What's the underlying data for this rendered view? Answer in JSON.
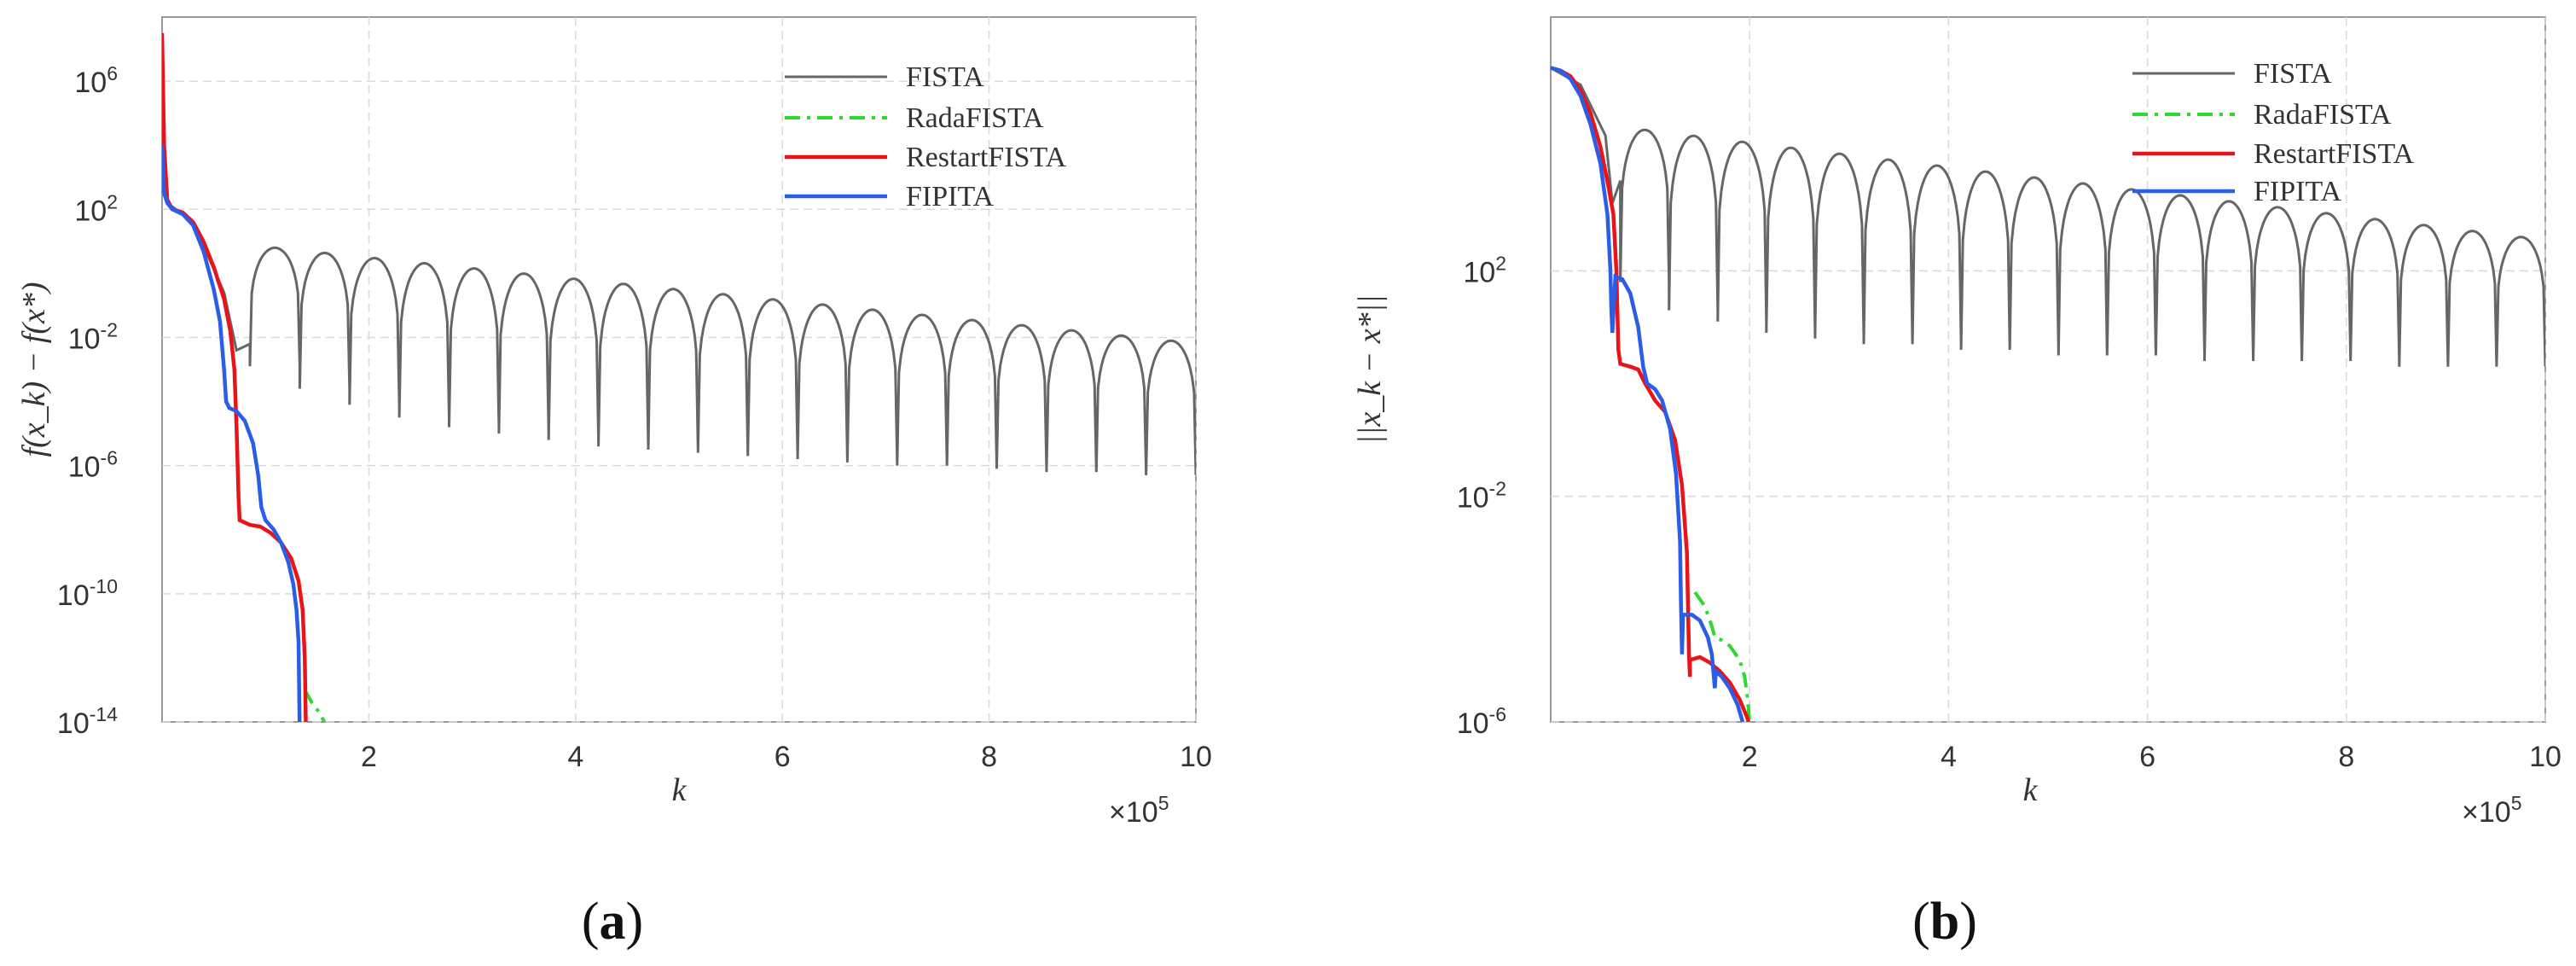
{
  "chart_data": [
    {
      "type": "line",
      "panel": "a",
      "panel_label": "a",
      "xlabel": "k",
      "ylabel": "f(x_k) − f(x*)",
      "yscale": "log",
      "x_multiplier": "×10",
      "x_multiplier_exp": "5",
      "xlim": [
        0,
        10
      ],
      "ylim_exp": [
        -14,
        8
      ],
      "x_ticks": [
        "2",
        "4",
        "6",
        "8",
        "10"
      ],
      "y_ticks": [
        {
          "base": "10",
          "exp": "6"
        },
        {
          "base": "10",
          "exp": "2"
        },
        {
          "base": "10",
          "exp": "-2"
        },
        {
          "base": "10",
          "exp": "-6"
        },
        {
          "base": "10",
          "exp": "-10"
        },
        {
          "base": "10",
          "exp": "-14"
        }
      ],
      "legend_position": "top-right",
      "series": [
        {
          "name": "FISTA",
          "color": "#666666",
          "style": "solid",
          "envelope": {
            "start_x": 0.85,
            "peak_first_log10": 0.8,
            "peak_last_log10": -2.1,
            "dips_log10": [
              -2.9,
              -3.6,
              -4.1,
              -4.5,
              -4.8,
              -5.0,
              -5.2,
              -5.4,
              -5.5,
              -5.6,
              -5.7,
              -5.8,
              -5.9,
              -6.0,
              -6.0,
              -6.1,
              -6.2,
              -6.2,
              -6.3
            ],
            "n_oscillations": 19
          }
        },
        {
          "name": "RadaFISTA",
          "color": "#2fd92f",
          "style": "dash-dot",
          "points": [
            [
              1.38,
              -13.0
            ],
            [
              1.45,
              -13.4
            ],
            [
              1.52,
              -13.7
            ],
            [
              1.57,
              -14.0
            ]
          ]
        },
        {
          "name": "RestartFISTA",
          "color": "#e8141a",
          "style": "solid",
          "points": [
            [
              0,
              7.5
            ],
            [
              0.02,
              4.0
            ],
            [
              0.05,
              2.3
            ],
            [
              0.1,
              2.0
            ],
            [
              0.2,
              1.9
            ],
            [
              0.3,
              1.6
            ],
            [
              0.4,
              1.0
            ],
            [
              0.5,
              0.2
            ],
            [
              0.6,
              -0.8
            ],
            [
              0.66,
              -1.8
            ],
            [
              0.7,
              -3.0
            ],
            [
              0.72,
              -4.8
            ],
            [
              0.74,
              -7.0
            ],
            [
              0.75,
              -7.7
            ],
            [
              0.85,
              -7.85
            ],
            [
              0.95,
              -7.9
            ],
            [
              1.05,
              -8.1
            ],
            [
              1.15,
              -8.4
            ],
            [
              1.25,
              -8.9
            ],
            [
              1.32,
              -9.6
            ],
            [
              1.36,
              -10.5
            ],
            [
              1.38,
              -12.0
            ],
            [
              1.39,
              -14.0
            ]
          ]
        },
        {
          "name": "FIPITA",
          "color": "#2a5de8",
          "style": "solid",
          "points": [
            [
              0,
              4.0
            ],
            [
              0.02,
              2.5
            ],
            [
              0.05,
              2.2
            ],
            [
              0.1,
              2.0
            ],
            [
              0.2,
              1.85
            ],
            [
              0.3,
              1.5
            ],
            [
              0.4,
              0.7
            ],
            [
              0.5,
              -0.5
            ],
            [
              0.56,
              -1.5
            ],
            [
              0.6,
              -3.0
            ],
            [
              0.62,
              -4.0
            ],
            [
              0.65,
              -4.2
            ],
            [
              0.72,
              -4.3
            ],
            [
              0.8,
              -4.6
            ],
            [
              0.88,
              -5.3
            ],
            [
              0.93,
              -6.3
            ],
            [
              0.96,
              -7.3
            ],
            [
              1.0,
              -7.7
            ],
            [
              1.08,
              -8.0
            ],
            [
              1.15,
              -8.4
            ],
            [
              1.22,
              -9.0
            ],
            [
              1.27,
              -9.7
            ],
            [
              1.3,
              -10.5
            ],
            [
              1.32,
              -11.5
            ],
            [
              1.33,
              -14.0
            ]
          ]
        }
      ]
    },
    {
      "type": "line",
      "panel": "b",
      "panel_label": "b",
      "xlabel": "k",
      "ylabel": "||x_k − x*||",
      "yscale": "log",
      "x_multiplier": "×10",
      "x_multiplier_exp": "5",
      "xlim": [
        0,
        10
      ],
      "ylim_exp": [
        -6,
        6.5
      ],
      "x_ticks": [
        "2",
        "4",
        "6",
        "8",
        "10"
      ],
      "y_ticks": [
        {
          "base": "10",
          "exp": "2"
        },
        {
          "base": "10",
          "exp": "-2"
        },
        {
          "base": "10",
          "exp": "-6"
        }
      ],
      "legend_position": "top-right",
      "series": [
        {
          "name": "FISTA",
          "color": "#666666",
          "style": "solid",
          "envelope": {
            "start_x": 0.7,
            "peak_first_log10": 4.5,
            "peak_last_log10": 2.6,
            "dips_log10": [
              1.8,
              1.3,
              1.1,
              0.9,
              0.8,
              0.7,
              0.7,
              0.6,
              0.6,
              0.5,
              0.5,
              0.5,
              0.4,
              0.4,
              0.4,
              0.4,
              0.3,
              0.3,
              0.3
            ],
            "n_oscillations": 19
          }
        },
        {
          "name": "RadaFISTA",
          "color": "#2fd92f",
          "style": "dash-dot",
          "points": [
            [
              1.45,
              -3.7
            ],
            [
              1.55,
              -3.95
            ],
            [
              1.62,
              -4.3
            ],
            [
              1.65,
              -4.5
            ],
            [
              1.72,
              -4.55
            ],
            [
              1.8,
              -4.65
            ],
            [
              1.9,
              -4.9
            ],
            [
              1.95,
              -5.2
            ],
            [
              1.98,
              -5.6
            ],
            [
              2.0,
              -6.0
            ]
          ]
        },
        {
          "name": "RestartFISTA",
          "color": "#e8141a",
          "style": "solid",
          "points": [
            [
              0,
              5.6
            ],
            [
              0.1,
              5.55
            ],
            [
              0.2,
              5.45
            ],
            [
              0.3,
              5.2
            ],
            [
              0.4,
              4.8
            ],
            [
              0.5,
              4.2
            ],
            [
              0.58,
              3.5
            ],
            [
              0.63,
              3.0
            ],
            [
              0.66,
              2.0
            ],
            [
              0.68,
              0.6
            ],
            [
              0.7,
              0.35
            ],
            [
              0.8,
              0.3
            ],
            [
              0.88,
              0.25
            ],
            [
              0.95,
              0.0
            ],
            [
              1.05,
              -0.3
            ],
            [
              1.15,
              -0.5
            ],
            [
              1.25,
              -1.0
            ],
            [
              1.32,
              -1.8
            ],
            [
              1.37,
              -3.0
            ],
            [
              1.39,
              -4.8
            ],
            [
              1.4,
              -5.2
            ],
            [
              1.4,
              -4.9
            ],
            [
              1.5,
              -4.85
            ],
            [
              1.6,
              -4.95
            ],
            [
              1.7,
              -5.1
            ],
            [
              1.8,
              -5.3
            ],
            [
              1.9,
              -5.6
            ],
            [
              1.97,
              -5.9
            ],
            [
              1.99,
              -6.0
            ]
          ]
        },
        {
          "name": "FIPITA",
          "color": "#2a5de8",
          "style": "solid",
          "points": [
            [
              0,
              5.6
            ],
            [
              0.1,
              5.55
            ],
            [
              0.2,
              5.4
            ],
            [
              0.3,
              5.1
            ],
            [
              0.4,
              4.6
            ],
            [
              0.5,
              3.9
            ],
            [
              0.57,
              3.0
            ],
            [
              0.6,
              2.0
            ],
            [
              0.61,
              1.3
            ],
            [
              0.62,
              0.9
            ],
            [
              0.65,
              1.9
            ],
            [
              0.72,
              1.85
            ],
            [
              0.8,
              1.6
            ],
            [
              0.88,
              1.0
            ],
            [
              0.93,
              0.3
            ],
            [
              0.97,
              0.0
            ],
            [
              1.05,
              -0.1
            ],
            [
              1.12,
              -0.3
            ],
            [
              1.2,
              -0.8
            ],
            [
              1.26,
              -1.6
            ],
            [
              1.3,
              -2.8
            ],
            [
              1.31,
              -3.9
            ],
            [
              1.32,
              -4.8
            ],
            [
              1.33,
              -4.1
            ],
            [
              1.42,
              -4.1
            ],
            [
              1.5,
              -4.2
            ],
            [
              1.58,
              -4.5
            ],
            [
              1.62,
              -4.8
            ],
            [
              1.64,
              -5.2
            ],
            [
              1.65,
              -5.4
            ],
            [
              1.66,
              -5.1
            ],
            [
              1.72,
              -5.2
            ],
            [
              1.8,
              -5.4
            ],
            [
              1.88,
              -5.7
            ],
            [
              1.93,
              -6.0
            ]
          ]
        }
      ]
    }
  ]
}
